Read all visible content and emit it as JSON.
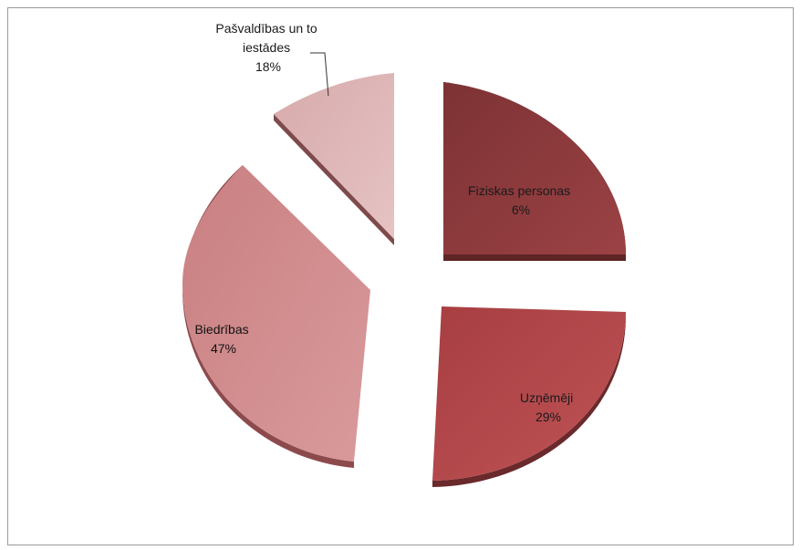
{
  "chart_data": {
    "type": "pie",
    "title": "",
    "slices": [
      {
        "label": "Fiziskas personas",
        "value": 6,
        "value_text": "6%",
        "color": "#8e3a3c"
      },
      {
        "label": "Uzņēmēji",
        "value": 29,
        "value_text": "29%",
        "color": "#b04447"
      },
      {
        "label": "Biedrības",
        "value": 47,
        "value_text": "47%",
        "color": "#cf898b"
      },
      {
        "label": "Pašvaldības un to iestādes",
        "label_lines": [
          "Pašvaldības un to",
          "iestādes"
        ],
        "value": 18,
        "value_text": "18%",
        "color": "#dcb4b5"
      }
    ],
    "exploded": true,
    "style": "3d",
    "legend": "none"
  }
}
